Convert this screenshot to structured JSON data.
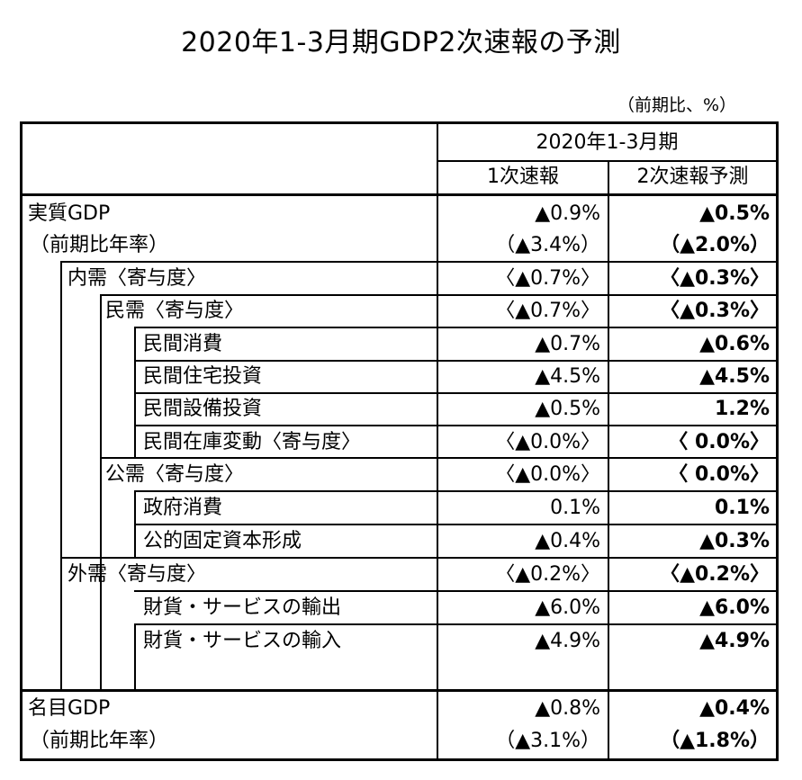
{
  "title": "2020年1-3月期GDP2次速報の予測",
  "unit_note": "（前期比、%）",
  "header": {
    "period": "2020年1-3月期",
    "col1": "1次速報",
    "col2": "2次速報予測"
  },
  "rows": [
    {
      "label": "実質GDP",
      "v1": "▲0.9%",
      "v2": "▲0.5%"
    },
    {
      "label": "（前期比年率）",
      "v1": "（▲3.4%）",
      "v2": "（▲2.0%）"
    },
    {
      "label": "内需〈寄与度〉",
      "v1": "〈▲0.7%〉",
      "v2": "〈▲0.3%〉"
    },
    {
      "label": "民需〈寄与度〉",
      "v1": "〈▲0.7%〉",
      "v2": "〈▲0.3%〉"
    },
    {
      "label": "民間消費",
      "v1": "▲0.7%",
      "v2": "▲0.6%"
    },
    {
      "label": "民間住宅投資",
      "v1": "▲4.5%",
      "v2": "▲4.5%"
    },
    {
      "label": "民間設備投資",
      "v1": "▲0.5%",
      "v2": "1.2%"
    },
    {
      "label": "民間在庫変動〈寄与度〉",
      "v1": "〈▲0.0%〉",
      "v2": "〈 0.0%〉"
    },
    {
      "label": "公需〈寄与度〉",
      "v1": "〈▲0.0%〉",
      "v2": "〈 0.0%〉"
    },
    {
      "label": "政府消費",
      "v1": "0.1%",
      "v2": "0.1%"
    },
    {
      "label": "公的固定資本形成",
      "v1": "▲0.4%",
      "v2": "▲0.3%"
    },
    {
      "label": "外需〈寄与度〉",
      "v1": "〈▲0.2%〉",
      "v2": "〈▲0.2%〉"
    },
    {
      "label": "財貨・サービスの輸出",
      "v1": "▲6.0%",
      "v2": "▲6.0%"
    },
    {
      "label": "財貨・サービスの輸入",
      "v1": "▲4.9%",
      "v2": "▲4.9%"
    },
    {
      "label": "名目GDP",
      "v1": "▲0.8%",
      "v2": "▲0.4%"
    },
    {
      "label": "（前期比年率）",
      "v1": "（▲3.1%）",
      "v2": "（▲1.8%）"
    }
  ]
}
